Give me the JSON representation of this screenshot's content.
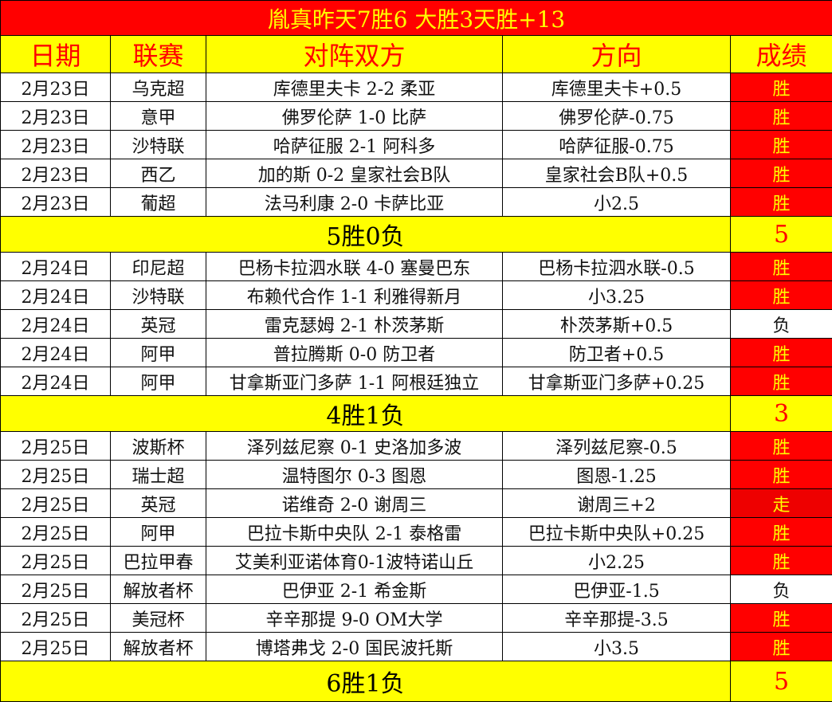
{
  "title": "胤真昨天7胜6  大胜3天胜+13",
  "headers": [
    "日期",
    "联赛",
    "对阵双方",
    "方向",
    "成绩"
  ],
  "colors": {
    "title_bg": "#ff0000",
    "title_text": "#ffff00",
    "header_bg": "#ffff00",
    "header_text": "#ff0000",
    "win_bg": "#ff0000",
    "win_text": "#ffff00",
    "summary_bg": "#ffff00"
  },
  "groups": [
    {
      "rows": [
        [
          "2月23日",
          "乌克超",
          "库德里夫卡 2-2 柔亚",
          "库德里夫卡+0.5",
          "胜"
        ],
        [
          "2月23日",
          "意甲",
          "佛罗伦萨 1-0 比萨",
          "佛罗伦萨-0.75",
          "胜"
        ],
        [
          "2月23日",
          "沙特联",
          "哈萨征服 2-1 阿科多",
          "哈萨征服-0.75",
          "胜"
        ],
        [
          "2月23日",
          "西乙",
          "加的斯 0-2 皇家社会B队",
          "皇家社会B队+0.5",
          "胜"
        ],
        [
          "2月23日",
          "葡超",
          "法马利康 2-0 卡萨比亚",
          "小2.5",
          "胜"
        ]
      ],
      "summary": "5胜0负",
      "score": "5"
    },
    {
      "rows": [
        [
          "2月24日",
          "印尼超",
          "巴杨卡拉泗水联 4-0 塞曼巴东",
          "巴杨卡拉泗水联-0.5",
          "胜"
        ],
        [
          "2月24日",
          "沙特联",
          "布赖代合作 1-1 利雅得新月",
          "小3.25",
          "胜"
        ],
        [
          "2月24日",
          "英冠",
          "雷克瑟姆 2-1 朴茨茅斯",
          "朴茨茅斯+0.5",
          "负"
        ],
        [
          "2月24日",
          "阿甲",
          "普拉腾斯 0-0 防卫者",
          "防卫者+0.5",
          "胜"
        ],
        [
          "2月24日",
          "阿甲",
          "甘拿斯亚门多萨 1-1 阿根廷独立",
          "甘拿斯亚门多萨+0.25",
          "胜"
        ]
      ],
      "summary": "4胜1负",
      "score": "3"
    },
    {
      "rows": [
        [
          "2月25日",
          "波斯杯",
          "泽列兹尼察 0-1 史洛加多波",
          "泽列兹尼察-0.5",
          "胜"
        ],
        [
          "2月25日",
          "瑞士超",
          "温特图尔 0-3 图恩",
          "图恩-1.25",
          "胜"
        ],
        [
          "2月25日",
          "英冠",
          "诺维奇 2-0 谢周三",
          "谢周三+2",
          "走"
        ],
        [
          "2月25日",
          "阿甲",
          "巴拉卡斯中央队 2-1 泰格雷",
          "巴拉卡斯中央队+0.25",
          "胜"
        ],
        [
          "2月25日",
          "巴拉甲春",
          "艾美利亚诺体育0-1波特诺山丘",
          "小2.25",
          "胜"
        ],
        [
          "2月25日",
          "解放者杯",
          "巴伊亚 2-1 希金斯",
          "巴伊亚-1.5",
          "负"
        ],
        [
          "2月25日",
          "美冠杯",
          "辛辛那提 9-0 OM大学",
          "辛辛那提-3.5",
          "胜"
        ],
        [
          "2月25日",
          "解放者杯",
          "博塔弗戈 2-0 国民波托斯",
          "小3.5",
          "胜"
        ]
      ],
      "summary": "6胜1负",
      "score": "5"
    }
  ]
}
